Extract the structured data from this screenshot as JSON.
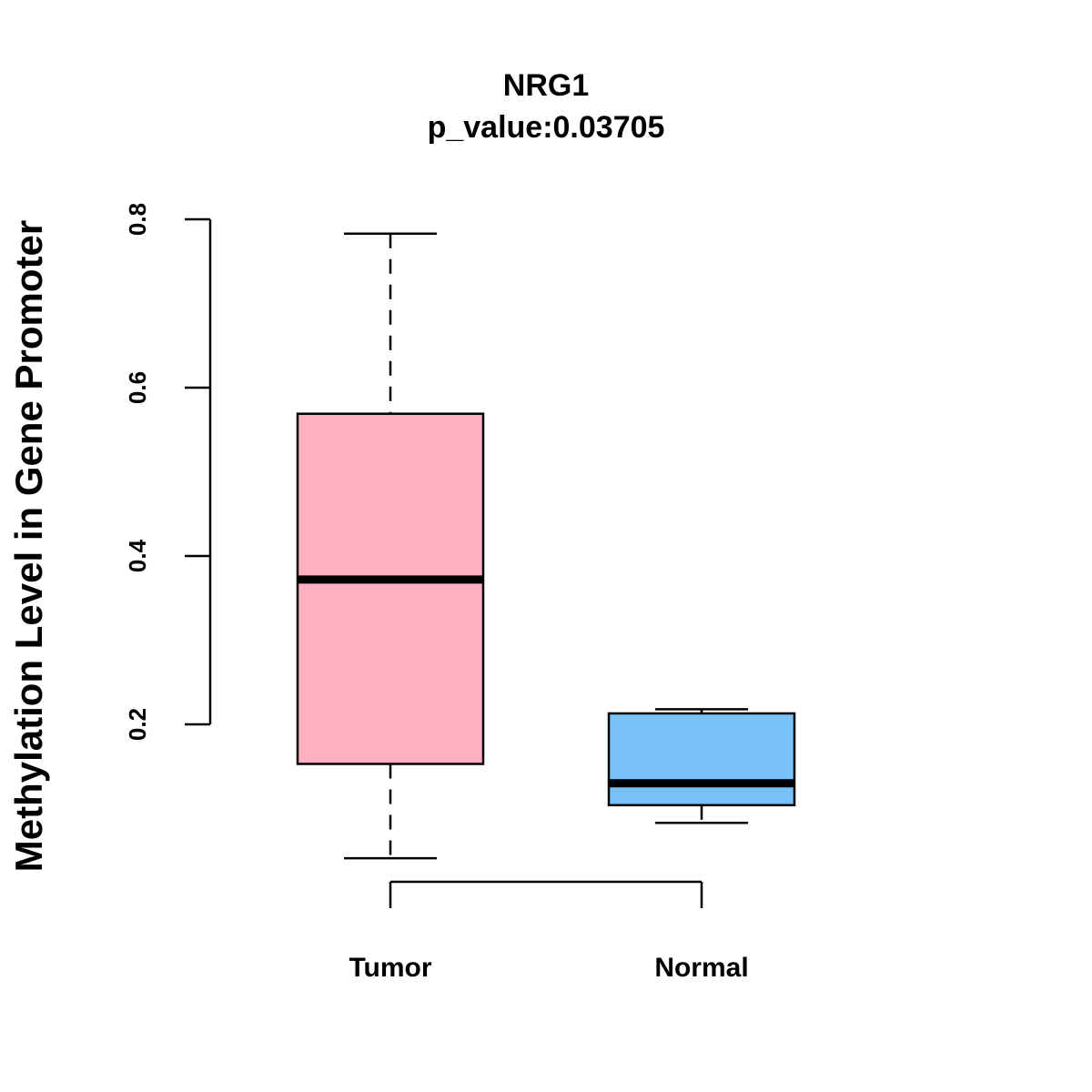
{
  "chart_data": {
    "type": "boxplot",
    "title": "NRG1",
    "subtitle": "p_value:0.03705",
    "xlabel": "",
    "ylabel": "Methylation Level in Gene Promoter",
    "ylim": [
      0.2,
      0.8
    ],
    "yticks": [
      "0.2",
      "0.4",
      "0.6",
      "0.8"
    ],
    "categories": [
      "Tumor",
      "Normal"
    ],
    "series": [
      {
        "name": "Tumor",
        "min": 0.041,
        "q1": 0.153,
        "median": 0.372,
        "q3": 0.569,
        "max": 0.783,
        "color": "#FDB0C1"
      },
      {
        "name": "Normal",
        "min": 0.083,
        "q1": 0.104,
        "median": 0.13,
        "q3": 0.213,
        "max": 0.218,
        "color": "#79C1F7"
      }
    ],
    "grid": false,
    "legend": "none"
  }
}
